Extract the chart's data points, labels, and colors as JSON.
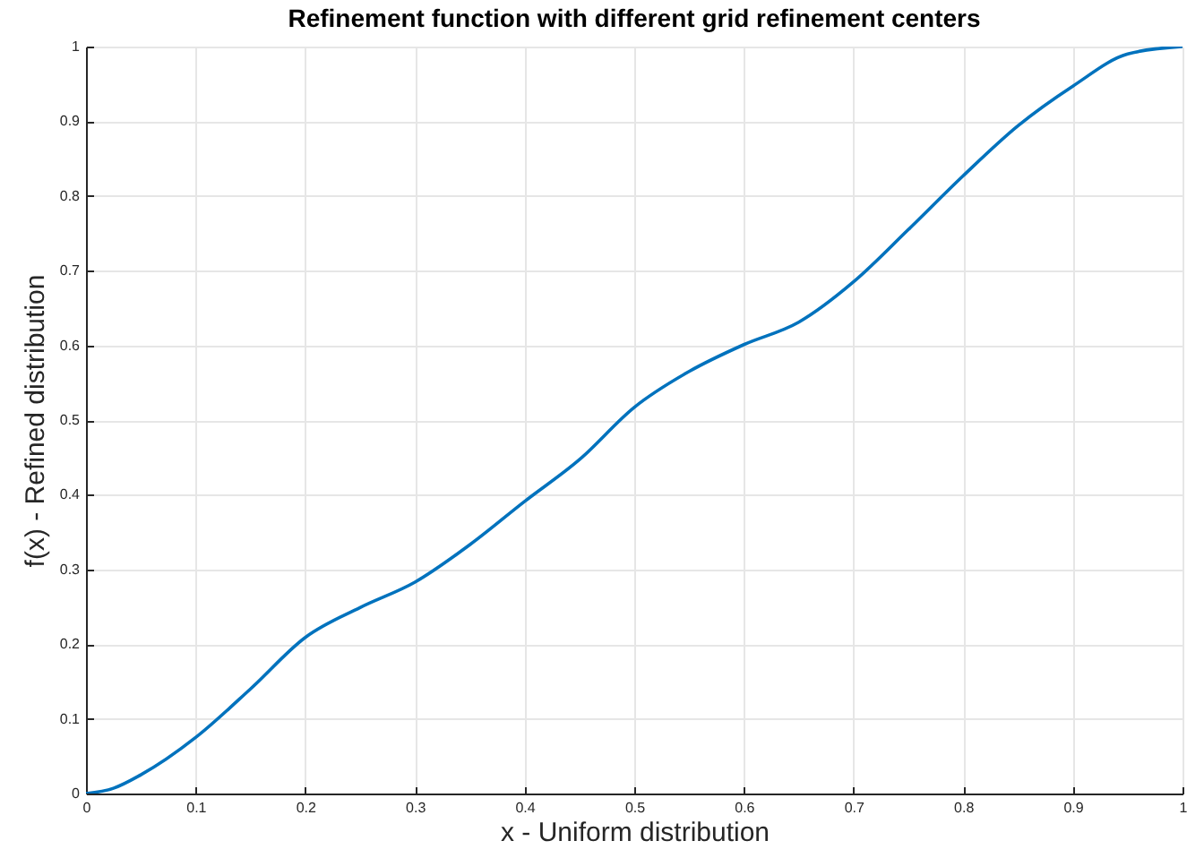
{
  "chart_data": {
    "type": "line",
    "title": "Refinement function with different grid refinement centers",
    "xlabel": "x - Uniform distribution",
    "ylabel": "f(x) - Refined distribution",
    "x": [
      0,
      0.025,
      0.05,
      0.1,
      0.15,
      0.2,
      0.25,
      0.3,
      0.35,
      0.4,
      0.45,
      0.5,
      0.55,
      0.6,
      0.65,
      0.7,
      0.75,
      0.8,
      0.85,
      0.9,
      0.95,
      1
    ],
    "series": [
      {
        "color": "#0072bd",
        "values": [
          0,
          0.007,
          0.025,
          0.075,
          0.14,
          0.209,
          0.249,
          0.283,
          0.333,
          0.391,
          0.447,
          0.517,
          0.565,
          0.601,
          0.631,
          0.685,
          0.755,
          0.827,
          0.894,
          0.947,
          0.99,
          1
        ]
      }
    ],
    "xlim": [
      0,
      1
    ],
    "ylim": [
      0,
      1
    ],
    "xticks": [
      0,
      0.1,
      0.2,
      0.3,
      0.4,
      0.5,
      0.6,
      0.7,
      0.8,
      0.9,
      1
    ],
    "yticks": [
      0,
      0.1,
      0.2,
      0.3,
      0.4,
      0.5,
      0.6,
      0.7,
      0.8,
      0.9,
      1
    ],
    "grid": true,
    "legend": false,
    "marker": "none",
    "line_style": "solid"
  }
}
